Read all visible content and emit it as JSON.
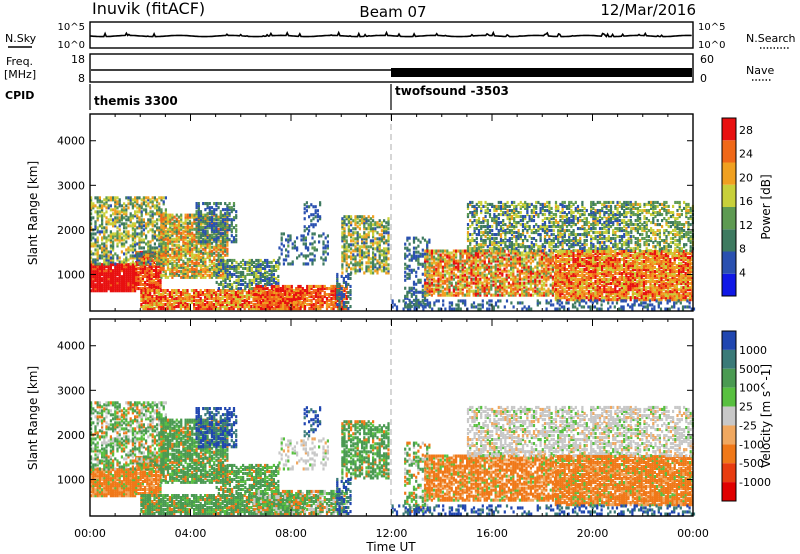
{
  "header": {
    "station": "Inuvik (fitACF)",
    "beam": "Beam 07",
    "date": "12/Mar/2016"
  },
  "strip_labels": {
    "nsky": "N.Sky",
    "freq_line1": "Freq.",
    "freq_line2": "[MHz]",
    "cpid": "CPID",
    "nsearch": "N.Search",
    "nave": "Nave",
    "nsky_ticks": [
      "10^5",
      "10^0"
    ],
    "nsearch_ticks": [
      "10^5",
      "10^0"
    ],
    "freq_ticks": [
      "18",
      "8"
    ],
    "nave_ticks": [
      "60",
      "0"
    ]
  },
  "cpid": {
    "labels": [
      "themis 3300",
      "twofsound -3503"
    ],
    "switch_time_hours": 12
  },
  "chart_data": [
    {
      "type": "heatmap",
      "title": "Power",
      "xlabel": "",
      "ylabel": "Slant Range [km]",
      "x_range_hours": [
        0,
        24
      ],
      "ylim": [
        180,
        4600
      ],
      "x_ticks": [
        "00:00",
        "04:00",
        "08:00",
        "12:00",
        "16:00",
        "20:00",
        "00:00"
      ],
      "y_ticks": [
        1000,
        2000,
        3000,
        4000
      ],
      "colorbar": {
        "label": "Power [dB]",
        "ticks": [
          4,
          8,
          12,
          16,
          20,
          24,
          28
        ],
        "range": [
          0,
          30
        ],
        "colors": [
          "#1018e6",
          "#2a50b0",
          "#3e7a60",
          "#5e9a52",
          "#c8d03a",
          "#f0a020",
          "#f06818",
          "#e81010"
        ]
      }
    },
    {
      "type": "heatmap",
      "title": "Velocity",
      "xlabel": "Time UT",
      "ylabel": "Slant Range [km]",
      "x_range_hours": [
        0,
        24
      ],
      "ylim": [
        180,
        4600
      ],
      "x_ticks": [
        "00:00",
        "04:00",
        "08:00",
        "12:00",
        "16:00",
        "20:00",
        "00:00"
      ],
      "y_ticks": [
        1000,
        2000,
        3000,
        4000
      ],
      "colorbar": {
        "label": "Velocity [m s^-1]",
        "ticks": [
          "1000",
          "500",
          "100",
          "25",
          "-25",
          "-100",
          "-500",
          "-1000"
        ],
        "colors": [
          "#2046b0",
          "#3a7a78",
          "#4a9a52",
          "#58c040",
          "#c8c8c8",
          "#f0a860",
          "#f07818",
          "#e83c10",
          "#e00000"
        ]
      }
    }
  ]
}
